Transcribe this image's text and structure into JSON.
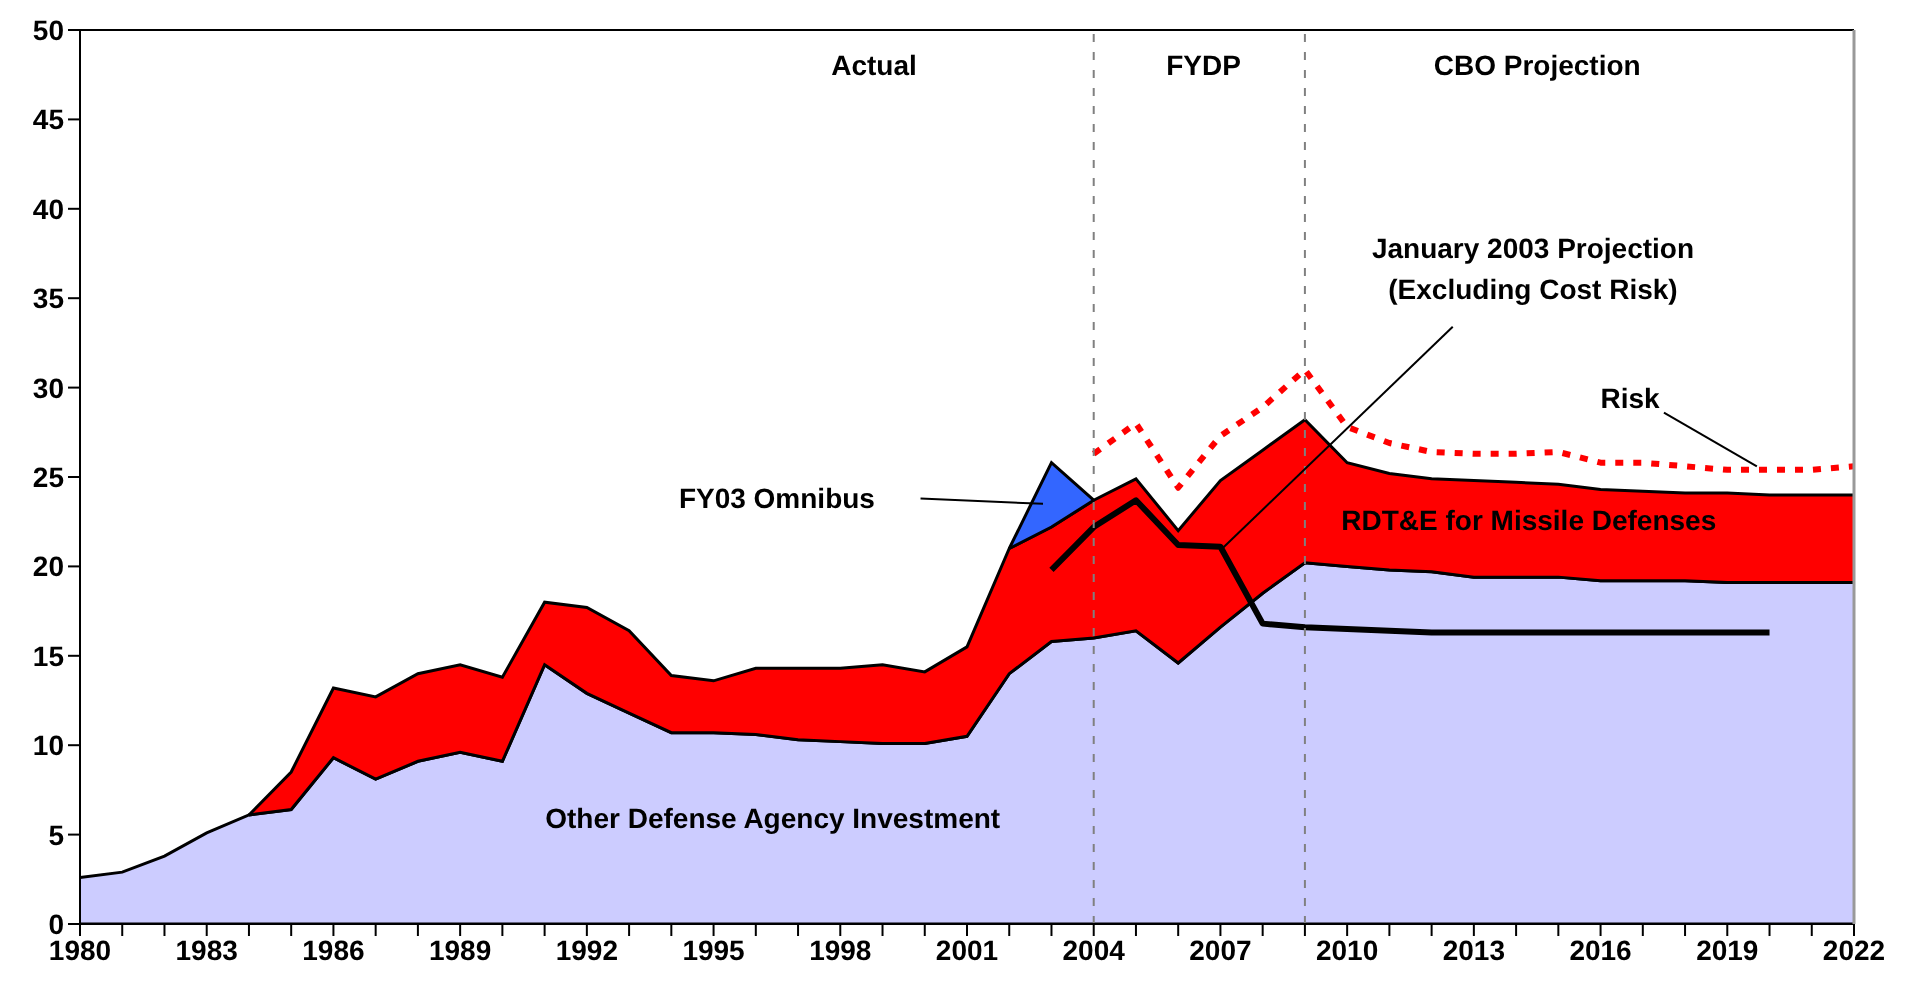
{
  "chart_data": {
    "type": "area",
    "stacked": true,
    "x": [
      1980,
      1981,
      1982,
      1983,
      1984,
      1985,
      1986,
      1987,
      1988,
      1989,
      1990,
      1991,
      1992,
      1993,
      1994,
      1995,
      1996,
      1997,
      1998,
      1999,
      2000,
      2001,
      2002,
      2003,
      2004,
      2005,
      2006,
      2007,
      2008,
      2009,
      2010,
      2011,
      2012,
      2013,
      2014,
      2015,
      2016,
      2017,
      2018,
      2019,
      2020,
      2021,
      2022
    ],
    "series": [
      {
        "name": "Other Defense Agency Investment",
        "color": "#ccccff",
        "values": [
          2.6,
          2.9,
          3.8,
          5.1,
          6.1,
          6.4,
          9.3,
          8.1,
          9.1,
          9.6,
          9.1,
          14.5,
          12.9,
          11.8,
          10.7,
          10.7,
          10.6,
          10.3,
          10.2,
          10.1,
          10.1,
          10.5,
          14.0,
          15.8,
          16.0,
          16.4,
          14.6,
          16.6,
          18.5,
          20.2,
          20.0,
          19.8,
          19.7,
          19.4,
          19.4,
          19.4,
          19.2,
          19.2,
          19.2,
          19.1,
          19.1,
          19.1,
          19.1
        ]
      },
      {
        "name": "RDT&E for Missile Defenses",
        "color": "#ff0000",
        "values": [
          null,
          null,
          null,
          null,
          0,
          2.1,
          3.9,
          4.6,
          4.9,
          4.9,
          4.7,
          3.5,
          4.8,
          4.6,
          3.2,
          2.9,
          3.7,
          4.0,
          4.1,
          4.4,
          4.0,
          5.0,
          7.0,
          6.4,
          7.7,
          8.5,
          7.4,
          8.2,
          8.0,
          8.0,
          5.8,
          5.4,
          5.2,
          5.4,
          5.3,
          5.2,
          5.1,
          5.0,
          4.9,
          5.0,
          4.9,
          4.9,
          4.9
        ]
      },
      {
        "name": "FY03 Omnibus",
        "color": "#3366ff",
        "values": [
          null,
          null,
          null,
          null,
          null,
          null,
          null,
          null,
          null,
          null,
          null,
          null,
          null,
          null,
          null,
          null,
          null,
          null,
          null,
          null,
          null,
          null,
          0,
          3.6,
          0,
          null,
          null,
          null,
          null,
          null,
          null,
          null,
          null,
          null,
          null,
          null,
          null,
          null,
          null,
          null,
          null,
          null,
          null
        ]
      },
      {
        "name": "January 2003 Projection (Excluding Cost Risk)",
        "type": "line",
        "color": "#000000",
        "line_style": "solid",
        "x": [
          2003,
          2004,
          2005,
          2006,
          2007,
          2008,
          2009,
          2010,
          2011,
          2012,
          2013,
          2014,
          2015,
          2016,
          2017,
          2018,
          2019,
          2020
        ],
        "values": [
          19.8,
          22.2,
          23.7,
          21.2,
          21.1,
          16.8,
          16.6,
          16.5,
          16.4,
          16.3,
          16.3,
          16.3,
          16.3,
          16.3,
          16.3,
          16.3,
          16.3,
          16.3
        ]
      },
      {
        "name": "Risk",
        "type": "line",
        "color": "#ff0000",
        "line_style": "dotted",
        "x": [
          2004,
          2005,
          2006,
          2007,
          2008,
          2009,
          2010,
          2011,
          2012,
          2013,
          2014,
          2015,
          2016,
          2017,
          2018,
          2019,
          2020,
          2021,
          2022
        ],
        "values": [
          26.3,
          28.0,
          24.4,
          27.3,
          28.9,
          31.0,
          27.8,
          26.9,
          26.4,
          26.3,
          26.3,
          26.4,
          25.8,
          25.8,
          25.6,
          25.4,
          25.4,
          25.4,
          25.6
        ]
      }
    ],
    "xlim": [
      1980,
      2022
    ],
    "xticks": [
      1980,
      {
        "value": 1981,
        "label": null
      },
      {
        "value": 1982,
        "label": null
      },
      1983,
      {
        "value": 1984,
        "label": null
      },
      {
        "value": 1985,
        "label": null
      },
      1986,
      {
        "value": 1987,
        "label": null
      },
      {
        "value": 1988,
        "label": null
      },
      1989,
      {
        "value": 1990,
        "label": null
      },
      {
        "value": 1991,
        "label": null
      },
      1992,
      {
        "value": 1993,
        "label": null
      },
      {
        "value": 1994,
        "label": null
      },
      1995,
      {
        "value": 1996,
        "label": null
      },
      {
        "value": 1997,
        "label": null
      },
      1998,
      {
        "value": 1999,
        "label": null
      },
      {
        "value": 2000,
        "label": null
      },
      2001,
      {
        "value": 2002,
        "label": null
      },
      {
        "value": 2003,
        "label": null
      },
      2004,
      {
        "value": 2005,
        "label": null
      },
      {
        "value": 2006,
        "label": null
      },
      2007,
      {
        "value": 2008,
        "label": null
      },
      {
        "value": 2009,
        "label": null
      },
      2010,
      {
        "value": 2011,
        "label": null
      },
      {
        "value": 2012,
        "label": null
      },
      2013,
      {
        "value": 2014,
        "label": null
      },
      {
        "value": 2015,
        "label": null
      },
      2016,
      {
        "value": 2017,
        "label": null
      },
      {
        "value": 2018,
        "label": null
      },
      2019,
      {
        "value": 2020,
        "label": null
      },
      {
        "value": 2021,
        "label": null
      },
      2022
    ],
    "ylim": [
      0,
      50
    ],
    "yticks": [
      0,
      5,
      10,
      15,
      20,
      25,
      30,
      35,
      40,
      45,
      50
    ],
    "ref_lines": [
      {
        "axis": "x",
        "value": 2004,
        "color": "#808080",
        "line_style": "dotted"
      },
      {
        "axis": "x",
        "value": 2009,
        "color": "#808080",
        "line_style": "dotted"
      }
    ],
    "annotations": [
      "Actual",
      "FYDP",
      "CBO Projection"
    ]
  }
}
